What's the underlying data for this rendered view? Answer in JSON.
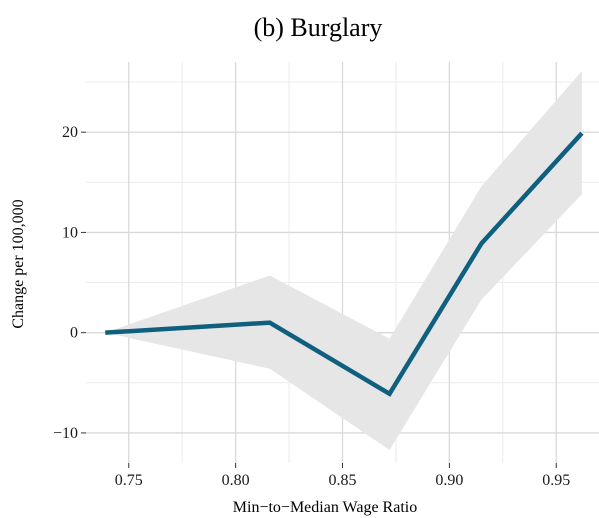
{
  "chart_data": {
    "type": "line",
    "title": "(b) Burglary",
    "xlabel": "Min−to−Median Wage Ratio",
    "ylabel": "Change per 100,000",
    "xlim": [
      0.73,
      0.97
    ],
    "ylim": [
      -13,
      27
    ],
    "x_ticks": [
      0.75,
      0.8,
      0.85,
      0.9,
      0.95
    ],
    "x_tick_labels": [
      "0.75",
      "0.80",
      "0.85",
      "0.90",
      "0.95"
    ],
    "y_ticks": [
      -10,
      0,
      10,
      20
    ],
    "y_tick_labels": [
      "−10",
      "0",
      "10",
      "20"
    ],
    "grid": true,
    "legend": "none",
    "series": [
      {
        "x": [
          0.739,
          0.816,
          0.872,
          0.915,
          0.962
        ],
        "y": [
          0,
          1,
          -6.1,
          8.9,
          19.9
        ],
        "lower": [
          0,
          -3.6,
          -11.7,
          3.3,
          13.8
        ],
        "upper": [
          0,
          5.7,
          -0.6,
          14.6,
          26.1
        ],
        "color": "#0f5f7e"
      }
    ],
    "band_color": "#e6e6e6"
  }
}
